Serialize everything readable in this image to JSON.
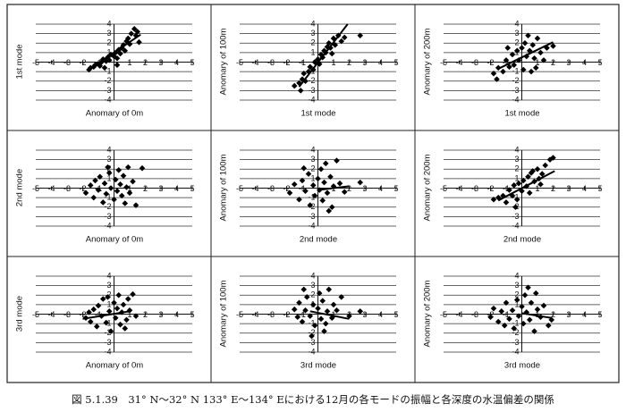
{
  "caption": "図 5.1.39　31° N～32° N 133° E～134° Eにおける12月の各モードの振幅と各深度の水温偏差の関係",
  "chart_data": [
    {
      "type": "scatter",
      "x_label": "Anomary of 0m",
      "y_label": "1st mode",
      "color": "#000000",
      "grid": true,
      "x": [
        -1.5,
        -1.3,
        -1.2,
        -1,
        -0.9,
        -0.8,
        -0.7,
        -0.5,
        -0.4,
        -0.3,
        -0.2,
        0,
        0.1,
        0.2,
        0.3,
        0.4,
        0.5,
        0.6,
        0.7,
        0.8,
        0.9,
        1,
        1.1,
        1.3,
        1.4,
        1.6,
        1.5,
        -1.6,
        0.2,
        -0.6
      ],
      "values": [
        -0.6,
        -0.5,
        -0.3,
        -0.2,
        -0.4,
        0,
        0.3,
        0.1,
        0.5,
        0.2,
        0.8,
        0.6,
        1,
        0.4,
        1.3,
        0.9,
        1.5,
        1.8,
        1.2,
        2.2,
        2.5,
        1.9,
        3,
        3.5,
        2.8,
        2.1,
        3.2,
        -0.8,
        -0.3,
        -0.6
      ],
      "trend": {
        "x": [
          -1.7,
          1.7
        ],
        "values": [
          -0.9,
          2.9
        ]
      },
      "xlim": [
        -5,
        5
      ],
      "ylim": [
        -4,
        4
      ],
      "xticks": [
        -5,
        -4,
        -3,
        -2,
        -1,
        1,
        2,
        3,
        4,
        5
      ],
      "yticks": [
        -4,
        -3,
        -2,
        -1,
        1,
        2,
        3,
        4
      ]
    },
    {
      "type": "scatter",
      "x_label": "1st mode",
      "y_label": "Anomary of 100m",
      "color": "#000000",
      "grid": true,
      "x": [
        -1.5,
        -1.2,
        -1,
        -0.9,
        -0.8,
        -0.6,
        -0.5,
        -0.3,
        -0.2,
        0,
        0.1,
        0.2,
        0.3,
        0.4,
        0.5,
        0.6,
        0.7,
        0.8,
        1,
        1.1,
        1.3,
        1.5,
        1.7,
        2.7,
        -1.1,
        0.9
      ],
      "values": [
        -2.5,
        -2.2,
        -1.8,
        -1.2,
        -2,
        -1,
        -0.5,
        -0.8,
        0,
        0.3,
        -0.2,
        0.8,
        0.5,
        1.2,
        1,
        1.6,
        2,
        1.5,
        2.5,
        1.8,
        2.8,
        2.2,
        2.6,
        2.8,
        -3,
        0.9
      ],
      "trend": {
        "x": [
          -1.2,
          1.9
        ],
        "values": [
          -2.6,
          4
        ]
      },
      "xlim": [
        -5,
        5
      ],
      "ylim": [
        -4,
        4
      ],
      "xticks": [
        -5,
        -4,
        -3,
        -2,
        -1,
        1,
        2,
        3,
        4,
        5
      ],
      "yticks": [
        -4,
        -3,
        -2,
        -1,
        1,
        2,
        3,
        4
      ]
    },
    {
      "type": "scatter",
      "x_label": "1st mode",
      "y_label": "Anomary of 200m",
      "color": "#000000",
      "grid": true,
      "x": [
        -1.8,
        -1.6,
        -1.5,
        -1.2,
        -1,
        -0.8,
        -0.6,
        -0.5,
        -0.3,
        -0.2,
        0,
        0.1,
        0.2,
        0.3,
        0.4,
        0.5,
        0.6,
        0.7,
        0.8,
        1,
        1.2,
        1.4,
        1.6,
        2,
        -0.9,
        0.9
      ],
      "values": [
        -1.2,
        -1.8,
        -0.6,
        -1,
        0.2,
        -0.5,
        0.8,
        -0.3,
        1.2,
        0.2,
        1.5,
        -0.8,
        2,
        0.6,
        2.8,
        1.2,
        -1,
        1.8,
        0.4,
        2.5,
        1,
        0.2,
        1.5,
        1.7,
        1.5,
        -0.6
      ],
      "trend": {
        "x": [
          -1.5,
          2
        ],
        "values": [
          -0.7,
          2.1
        ]
      },
      "xlim": [
        -5,
        5
      ],
      "ylim": [
        -4,
        4
      ],
      "xticks": [
        -5,
        -4,
        -3,
        -2,
        -1,
        1,
        2,
        3,
        4,
        5
      ],
      "yticks": [
        -4,
        -3,
        -2,
        -1,
        1,
        2,
        3,
        4
      ]
    },
    {
      "type": "scatter",
      "x_label": "Anomary of 0m",
      "y_label": "2nd mode",
      "color": "#000000",
      "grid": true,
      "x": [
        -1.8,
        -1.5,
        -1.3,
        -1.2,
        -1,
        -0.9,
        -0.7,
        -0.6,
        -0.5,
        -0.3,
        -0.2,
        0,
        0.1,
        0.2,
        0.3,
        0.4,
        0.5,
        0.6,
        0.8,
        0.9,
        1,
        1.2,
        1.4,
        1.8,
        -0.4,
        0.7
      ],
      "values": [
        -0.5,
        0.3,
        -1,
        0.8,
        -0.2,
        1.2,
        -1.5,
        0.5,
        -0.6,
        1.6,
        0,
        -1.2,
        0.9,
        -0.3,
        1.9,
        0.4,
        -0.8,
        1.3,
        0.1,
        2.2,
        -0.5,
        0.7,
        -1.8,
        2.1,
        2.2,
        -1.6
      ],
      "xlim": [
        -5,
        5
      ],
      "ylim": [
        -4,
        4
      ],
      "xticks": [
        -5,
        -4,
        -3,
        -2,
        -1,
        1,
        2,
        3,
        4,
        5
      ],
      "yticks": [
        -4,
        -3,
        -2,
        -1,
        1,
        2,
        3,
        4
      ]
    },
    {
      "type": "scatter",
      "x_label": "2nd mode",
      "y_label": "Anomary of 100m",
      "color": "#000000",
      "grid": true,
      "x": [
        -1.8,
        -1.5,
        -1.2,
        -1,
        -0.8,
        -0.6,
        -0.5,
        -0.3,
        -0.2,
        0,
        0.1,
        0.2,
        0.3,
        0.4,
        0.5,
        0.6,
        0.8,
        0.9,
        1,
        1.2,
        1.4,
        1.7,
        2.7,
        -0.9,
        0.7
      ],
      "values": [
        -0.5,
        0.4,
        -1.2,
        0.8,
        -0.3,
        1.5,
        -1.8,
        0.3,
        -0.8,
        1,
        -0.2,
        2,
        -1.3,
        0.6,
        2.6,
        -0.5,
        1.2,
        -2,
        0.2,
        2.9,
        0.5,
        -0.4,
        0.6,
        2.1,
        -2.4
      ],
      "trend": {
        "x": [
          0,
          2
        ],
        "values": [
          -0.2,
          0.2
        ]
      },
      "xlim": [
        -5,
        5
      ],
      "ylim": [
        -4,
        4
      ],
      "xticks": [
        -5,
        -4,
        -3,
        -2,
        -1,
        1,
        2,
        3,
        4,
        5
      ],
      "yticks": [
        -4,
        -3,
        -2,
        -1,
        1,
        2,
        3,
        4
      ]
    },
    {
      "type": "scatter",
      "x_label": "2nd mode",
      "y_label": "Anomary of 200m",
      "color": "#000000",
      "grid": true,
      "x": [
        -1.5,
        -1.2,
        -1,
        -0.8,
        -0.6,
        -0.5,
        -0.3,
        -0.2,
        0,
        0.1,
        0.3,
        0.4,
        0.5,
        0.6,
        0.8,
        1,
        1.1,
        1.3,
        1.5,
        1.8,
        2,
        -1.8,
        -0.4,
        0.7,
        1.2
      ],
      "values": [
        -1,
        -0.8,
        -1.5,
        -0.2,
        -0.8,
        0.3,
        -1.2,
        0.5,
        -0.3,
        0.8,
        0.2,
        1.2,
        -0.5,
        1.6,
        0.7,
        2,
        1,
        1.5,
        2.4,
        3,
        3.2,
        -1.2,
        -2,
        1.8,
        0.4
      ],
      "trend": {
        "x": [
          -1.5,
          2.1
        ],
        "values": [
          -1.3,
          1.8
        ]
      },
      "xlim": [
        -5,
        5
      ],
      "ylim": [
        -4,
        4
      ],
      "xticks": [
        -5,
        -4,
        -3,
        -2,
        -1,
        1,
        2,
        3,
        4,
        5
      ],
      "yticks": [
        -4,
        -3,
        -2,
        -1,
        1,
        2,
        3,
        4
      ]
    },
    {
      "type": "scatter",
      "x_label": "Anomary of 0m",
      "y_label": "3rd mode",
      "color": "#000000",
      "grid": true,
      "x": [
        -1.8,
        -1.5,
        -1.3,
        -1.1,
        -1,
        -0.8,
        -0.7,
        -0.5,
        -0.3,
        -0.2,
        0,
        0.1,
        0.2,
        0.3,
        0.4,
        0.5,
        0.6,
        0.8,
        0.9,
        1,
        1.2,
        1.4,
        -0.4,
        0.7,
        -1.6
      ],
      "values": [
        -0.4,
        -0.8,
        0.5,
        -1.3,
        0.9,
        -0.2,
        1.6,
        -0.9,
        0.3,
        -1.8,
        1.2,
        -0.4,
        0.6,
        2,
        -1.1,
        0.2,
        1,
        -0.6,
        1.6,
        0.4,
        2.1,
        -0.2,
        1.8,
        -1.5,
        0.2
      ],
      "trend": {
        "x": [
          -2,
          1
        ],
        "values": [
          -0.5,
          0.3
        ]
      },
      "xlim": [
        -5,
        5
      ],
      "ylim": [
        -4,
        4
      ],
      "xticks": [
        -5,
        -4,
        -3,
        -2,
        -1,
        1,
        2,
        3,
        4,
        5
      ],
      "yticks": [
        -4,
        -3,
        -2,
        -1,
        1,
        2,
        3,
        4
      ]
    },
    {
      "type": "scatter",
      "x_label": "3rd mode",
      "y_label": "Anomary of 100m",
      "color": "#000000",
      "grid": true,
      "x": [
        -1.5,
        -1.3,
        -1.2,
        -1,
        -0.8,
        -0.7,
        -0.5,
        -0.3,
        -0.2,
        0,
        0.1,
        0.2,
        0.3,
        0.5,
        0.6,
        0.7,
        0.9,
        1,
        1.2,
        1.5,
        2,
        -0.9,
        0.4,
        -0.4,
        2.7
      ],
      "values": [
        0.5,
        -0.3,
        1.2,
        -0.8,
        0.4,
        1.8,
        -0.2,
        1,
        -1.2,
        0.6,
        2.2,
        -0.5,
        1.4,
        -1,
        0.3,
        2.6,
        -0.4,
        1,
        0.4,
        1.8,
        -0.2,
        2.6,
        -1.8,
        -2.3,
        0.3
      ],
      "trend": {
        "x": [
          -0.5,
          2
        ],
        "values": [
          0.3,
          -0.5
        ]
      },
      "xlim": [
        -5,
        5
      ],
      "ylim": [
        -4,
        4
      ],
      "xticks": [
        -5,
        -4,
        -3,
        -2,
        -1,
        1,
        2,
        3,
        4,
        5
      ],
      "yticks": [
        -4,
        -3,
        -2,
        -1,
        1,
        2,
        3,
        4
      ]
    },
    {
      "type": "scatter",
      "x_label": "3rd mode",
      "y_label": "Anomary of 200m",
      "color": "#000000",
      "grid": true,
      "x": [
        -2,
        -1.8,
        -1.5,
        -1.3,
        -1,
        -0.8,
        -0.6,
        -0.5,
        -0.3,
        -0.2,
        0,
        0.1,
        0.2,
        0.3,
        0.5,
        0.6,
        0.8,
        1,
        1.2,
        1.4,
        1.7,
        1.9,
        -1.1,
        0.4,
        0.9
      ],
      "values": [
        -0.3,
        0.6,
        -0.8,
        0.3,
        1.2,
        -0.5,
        0.4,
        -1.5,
        1.5,
        -0.2,
        0.8,
        -1,
        2,
        0.2,
        -0.6,
        1.2,
        -1.8,
        0.5,
        -0.3,
        0.9,
        -1.2,
        -0.6,
        -1.2,
        2.8,
        2.2
      ],
      "trend": {
        "x": [
          0,
          1.9
        ],
        "values": [
          0.1,
          -0.4
        ]
      },
      "xlim": [
        -5,
        5
      ],
      "ylim": [
        -4,
        4
      ],
      "xticks": [
        -5,
        -4,
        -3,
        -2,
        -1,
        1,
        2,
        3,
        4,
        5
      ],
      "yticks": [
        -4,
        -3,
        -2,
        -1,
        1,
        2,
        3,
        4
      ]
    }
  ]
}
